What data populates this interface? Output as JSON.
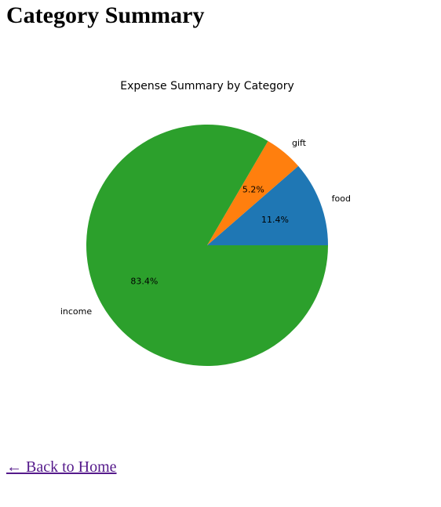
{
  "page": {
    "title": "Category Summary"
  },
  "nav": {
    "back_label": "← Back to Home"
  },
  "chart_data": {
    "type": "pie",
    "title": "Expense Summary by Category",
    "categories": [
      "food",
      "gift",
      "income"
    ],
    "values": [
      11.4,
      5.2,
      83.4
    ],
    "percent_labels": [
      "11.4%",
      "5.2%",
      "83.4%"
    ],
    "colors": [
      "#1f77b4",
      "#ff7f0e",
      "#2ca02c"
    ],
    "start_angle_deg": 0,
    "direction": "counterclockwise",
    "legend": "none"
  }
}
